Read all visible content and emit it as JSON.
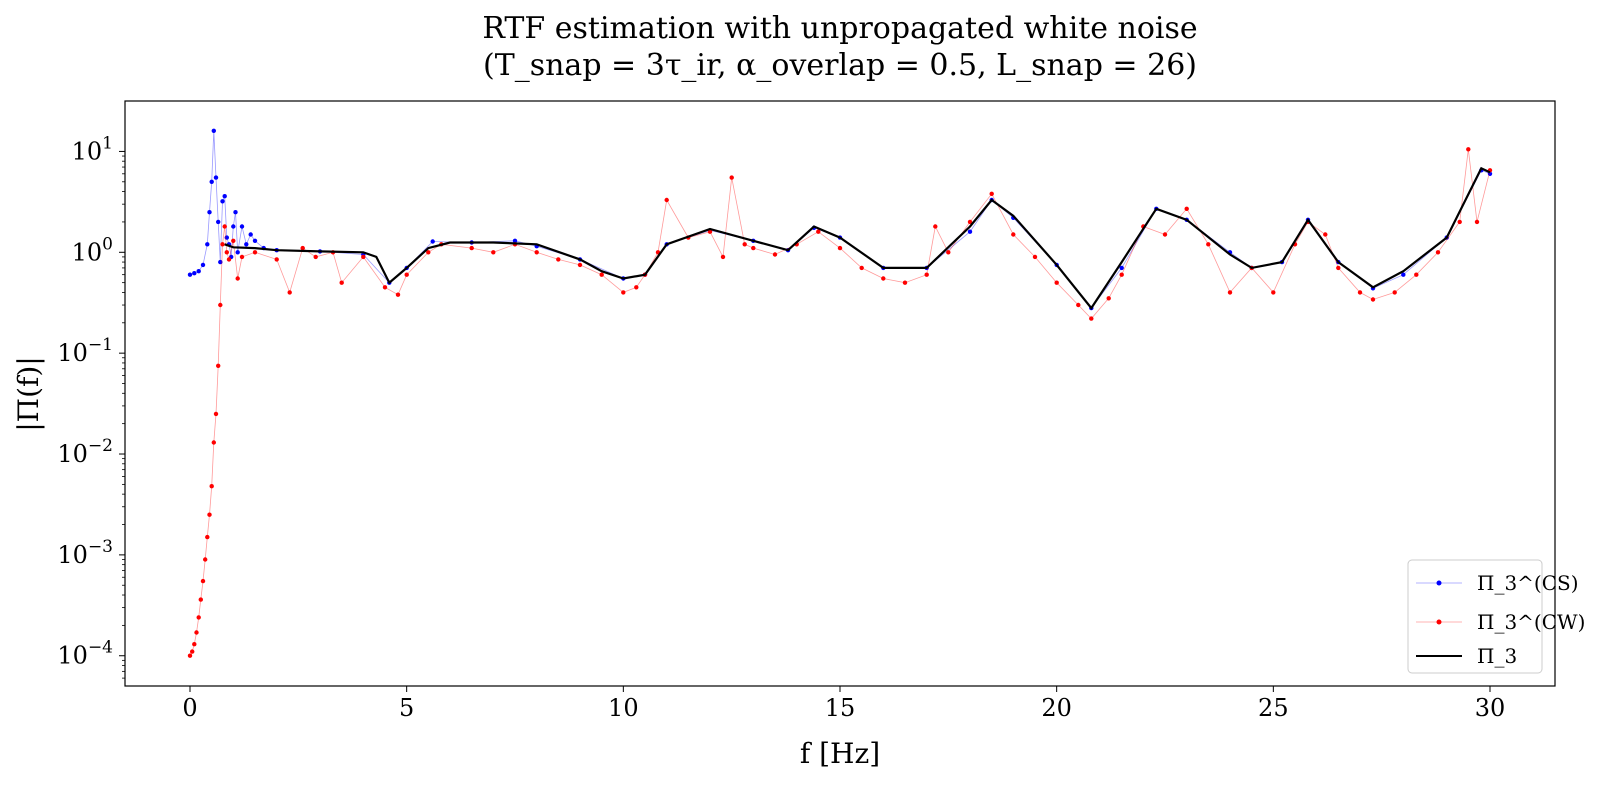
{
  "chart_data": {
    "type": "line",
    "title": "RTF estimation with unpropagated white noise",
    "subtitle": "(T_snap = 3τ_ir,   α_overlap = 0.5,   L_snap = 26)",
    "xlabel": "f [Hz]",
    "ylabel": "|Π(f)|",
    "xlim": [
      -1.5,
      31.5
    ],
    "ylim_log10": [
      -4.3,
      1.5
    ],
    "y_scale": "log",
    "grid": false,
    "legend_position": "lower-right",
    "x_ticks": [
      0,
      5,
      10,
      15,
      20,
      25,
      30
    ],
    "x_tick_labels": [
      "0",
      "5",
      "10",
      "15",
      "20",
      "25",
      "30"
    ],
    "y_tick_exponents": [
      1,
      0,
      -1,
      -2,
      -3,
      -4
    ],
    "y_tick_labels": [
      "10^1",
      "10^0",
      "10^-1",
      "10^-2",
      "10^-3",
      "10^-4"
    ],
    "series": [
      {
        "name": "Π_3^(CS)",
        "color": "#0000ff",
        "style": "thin line with dot markers",
        "points": [
          [
            0.0,
            0.6
          ],
          [
            0.1,
            0.62
          ],
          [
            0.2,
            0.65
          ],
          [
            0.3,
            0.75
          ],
          [
            0.4,
            1.2
          ],
          [
            0.45,
            2.5
          ],
          [
            0.5,
            5.0
          ],
          [
            0.55,
            16.0
          ],
          [
            0.6,
            5.5
          ],
          [
            0.65,
            2.0
          ],
          [
            0.7,
            0.8
          ],
          [
            0.75,
            3.2
          ],
          [
            0.8,
            3.6
          ],
          [
            0.85,
            1.4
          ],
          [
            0.9,
            1.2
          ],
          [
            0.95,
            0.9
          ],
          [
            1.0,
            1.8
          ],
          [
            1.05,
            2.5
          ],
          [
            1.1,
            1.0
          ],
          [
            1.2,
            1.8
          ],
          [
            1.3,
            1.2
          ],
          [
            1.4,
            1.5
          ],
          [
            1.5,
            1.3
          ],
          [
            1.7,
            1.1
          ],
          [
            2.0,
            1.05
          ],
          [
            3.0,
            1.02
          ],
          [
            4.0,
            0.95
          ],
          [
            4.6,
            0.5
          ],
          [
            5.0,
            0.7
          ],
          [
            5.6,
            1.28
          ],
          [
            6.5,
            1.25
          ],
          [
            7.5,
            1.3
          ],
          [
            8.0,
            1.15
          ],
          [
            9.0,
            0.85
          ],
          [
            10.0,
            0.55
          ],
          [
            10.5,
            0.6
          ],
          [
            11.0,
            1.2
          ],
          [
            12.0,
            1.65
          ],
          [
            13.0,
            1.3
          ],
          [
            13.8,
            1.05
          ],
          [
            14.4,
            1.75
          ],
          [
            15.0,
            1.4
          ],
          [
            16.0,
            0.7
          ],
          [
            17.0,
            0.7
          ],
          [
            18.0,
            1.6
          ],
          [
            18.5,
            3.3
          ],
          [
            19.0,
            2.2
          ],
          [
            20.0,
            0.75
          ],
          [
            20.8,
            0.28
          ],
          [
            21.5,
            0.7
          ],
          [
            22.3,
            2.7
          ],
          [
            23.0,
            2.1
          ],
          [
            24.0,
            1.0
          ],
          [
            24.5,
            0.7
          ],
          [
            25.2,
            0.8
          ],
          [
            25.8,
            2.1
          ],
          [
            26.5,
            0.8
          ],
          [
            27.3,
            0.44
          ],
          [
            28.0,
            0.6
          ],
          [
            29.0,
            1.4
          ],
          [
            29.8,
            6.5
          ],
          [
            30.0,
            6.0
          ]
        ]
      },
      {
        "name": "Π_3^(CW)",
        "color": "#ff0000",
        "style": "thin line with dot markers",
        "points": [
          [
            0.0,
            0.0001
          ],
          [
            0.05,
            0.00011
          ],
          [
            0.1,
            0.00013
          ],
          [
            0.15,
            0.00017
          ],
          [
            0.2,
            0.00024
          ],
          [
            0.25,
            0.00036
          ],
          [
            0.3,
            0.00055
          ],
          [
            0.35,
            0.0009
          ],
          [
            0.4,
            0.0015
          ],
          [
            0.45,
            0.0025
          ],
          [
            0.5,
            0.0048
          ],
          [
            0.55,
            0.013
          ],
          [
            0.6,
            0.025
          ],
          [
            0.65,
            0.075
          ],
          [
            0.7,
            0.3
          ],
          [
            0.75,
            1.2
          ],
          [
            0.8,
            1.8
          ],
          [
            0.85,
            1.0
          ],
          [
            0.9,
            0.85
          ],
          [
            1.0,
            1.3
          ],
          [
            1.1,
            0.55
          ],
          [
            1.2,
            0.9
          ],
          [
            1.5,
            1.0
          ],
          [
            2.0,
            0.85
          ],
          [
            2.3,
            0.4
          ],
          [
            2.6,
            1.1
          ],
          [
            2.9,
            0.9
          ],
          [
            3.3,
            1.0
          ],
          [
            3.5,
            0.5
          ],
          [
            4.0,
            0.9
          ],
          [
            4.5,
            0.45
          ],
          [
            4.8,
            0.38
          ],
          [
            5.0,
            0.6
          ],
          [
            5.5,
            1.0
          ],
          [
            5.8,
            1.2
          ],
          [
            6.5,
            1.1
          ],
          [
            7.0,
            1.0
          ],
          [
            7.5,
            1.2
          ],
          [
            8.0,
            1.0
          ],
          [
            8.5,
            0.85
          ],
          [
            9.0,
            0.75
          ],
          [
            9.5,
            0.6
          ],
          [
            10.0,
            0.4
          ],
          [
            10.3,
            0.45
          ],
          [
            10.5,
            0.6
          ],
          [
            10.8,
            1.0
          ],
          [
            11.0,
            3.3
          ],
          [
            11.5,
            1.4
          ],
          [
            12.0,
            1.6
          ],
          [
            12.3,
            0.9
          ],
          [
            12.5,
            5.5
          ],
          [
            12.8,
            1.2
          ],
          [
            13.0,
            1.1
          ],
          [
            13.5,
            0.95
          ],
          [
            14.0,
            1.2
          ],
          [
            14.5,
            1.6
          ],
          [
            15.0,
            1.1
          ],
          [
            15.5,
            0.7
          ],
          [
            16.0,
            0.55
          ],
          [
            16.5,
            0.5
          ],
          [
            17.0,
            0.6
          ],
          [
            17.2,
            1.8
          ],
          [
            17.5,
            1.0
          ],
          [
            18.0,
            2.0
          ],
          [
            18.5,
            3.8
          ],
          [
            19.0,
            1.5
          ],
          [
            19.5,
            0.9
          ],
          [
            20.0,
            0.5
          ],
          [
            20.5,
            0.3
          ],
          [
            20.8,
            0.22
          ],
          [
            21.2,
            0.35
          ],
          [
            21.5,
            0.6
          ],
          [
            22.0,
            1.8
          ],
          [
            22.5,
            1.5
          ],
          [
            23.0,
            2.7
          ],
          [
            23.5,
            1.2
          ],
          [
            24.0,
            0.4
          ],
          [
            24.5,
            0.7
          ],
          [
            25.0,
            0.4
          ],
          [
            25.5,
            1.2
          ],
          [
            25.8,
            2.0
          ],
          [
            26.2,
            1.5
          ],
          [
            26.5,
            0.7
          ],
          [
            27.0,
            0.4
          ],
          [
            27.3,
            0.34
          ],
          [
            27.8,
            0.4
          ],
          [
            28.3,
            0.6
          ],
          [
            28.8,
            1.0
          ],
          [
            29.3,
            2.0
          ],
          [
            29.5,
            10.5
          ],
          [
            29.7,
            2.0
          ],
          [
            30.0,
            6.5
          ]
        ]
      },
      {
        "name": "Π_3",
        "color": "#000000",
        "style": "solid line",
        "points": [
          [
            0.8,
            1.2
          ],
          [
            1.0,
            1.12
          ],
          [
            1.5,
            1.1
          ],
          [
            2.0,
            1.05
          ],
          [
            3.0,
            1.02
          ],
          [
            4.0,
            1.0
          ],
          [
            4.3,
            0.9
          ],
          [
            4.6,
            0.5
          ],
          [
            5.0,
            0.7
          ],
          [
            5.5,
            1.1
          ],
          [
            6.0,
            1.25
          ],
          [
            7.0,
            1.25
          ],
          [
            8.0,
            1.2
          ],
          [
            9.0,
            0.85
          ],
          [
            9.5,
            0.65
          ],
          [
            10.0,
            0.55
          ],
          [
            10.5,
            0.6
          ],
          [
            11.0,
            1.2
          ],
          [
            12.0,
            1.7
          ],
          [
            13.0,
            1.3
          ],
          [
            13.8,
            1.05
          ],
          [
            14.4,
            1.8
          ],
          [
            15.0,
            1.4
          ],
          [
            16.0,
            0.7
          ],
          [
            17.0,
            0.7
          ],
          [
            18.0,
            1.8
          ],
          [
            18.5,
            3.3
          ],
          [
            19.0,
            2.3
          ],
          [
            20.0,
            0.75
          ],
          [
            20.8,
            0.28
          ],
          [
            21.5,
            0.8
          ],
          [
            22.3,
            2.7
          ],
          [
            23.0,
            2.1
          ],
          [
            24.0,
            0.95
          ],
          [
            24.5,
            0.7
          ],
          [
            25.2,
            0.8
          ],
          [
            25.8,
            2.1
          ],
          [
            26.5,
            0.8
          ],
          [
            27.3,
            0.45
          ],
          [
            28.0,
            0.65
          ],
          [
            29.0,
            1.4
          ],
          [
            29.8,
            6.8
          ],
          [
            30.0,
            6.2
          ]
        ]
      }
    ]
  }
}
